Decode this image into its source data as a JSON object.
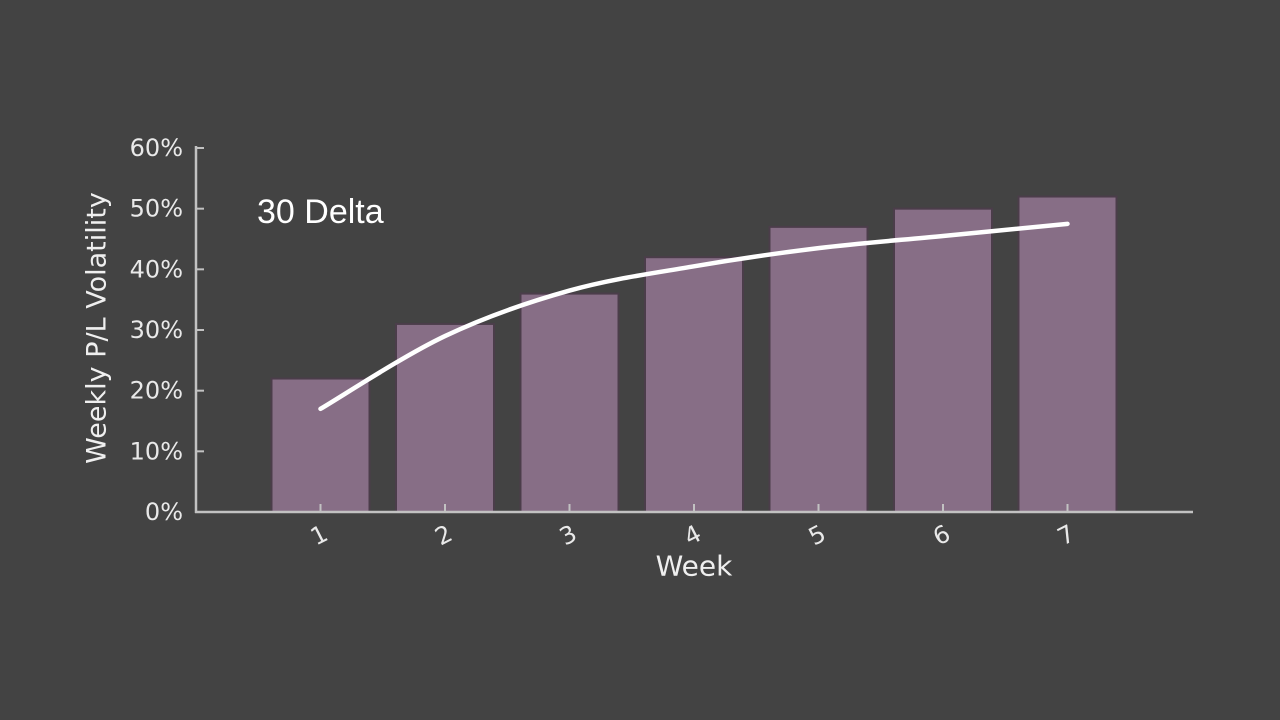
{
  "canvas": {
    "background": "#434343"
  },
  "chart_data": {
    "type": "bar",
    "title": "",
    "xlabel": "Week",
    "ylabel": "Weekly P/L Volatility",
    "annotation": "30 Delta",
    "categories": [
      "1",
      "2",
      "3",
      "4",
      "5",
      "6",
      "7"
    ],
    "series": [
      {
        "name": "Weekly P/L Volatility",
        "type": "bar",
        "unit": "%",
        "values": [
          22,
          31,
          36,
          42,
          47,
          50,
          52
        ]
      },
      {
        "name": "30 Delta",
        "type": "line",
        "unit": "%",
        "values": [
          17,
          29,
          36.5,
          40.5,
          43.5,
          45.5,
          47.5
        ]
      }
    ],
    "ylim": [
      0,
      60
    ],
    "yticks": [
      "0%",
      "10%",
      "20%",
      "30%",
      "40%",
      "50%",
      "60%"
    ],
    "x_tick_rotation_deg": -27,
    "grid": false,
    "legend_position": "none",
    "colors": {
      "background": "#434343",
      "bar_fill": "#876e86",
      "bar_edge": "#4b3d4a",
      "line": "#ffffff",
      "axis": "#c2c2c2",
      "tick_text": "#e9e9e9"
    }
  }
}
